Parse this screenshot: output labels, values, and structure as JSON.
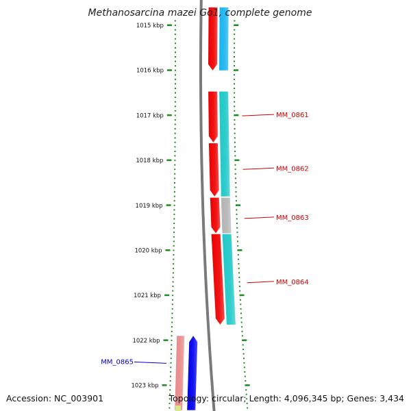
{
  "title": "Methanosarcina mazei Go1, complete genome",
  "footer": {
    "accession": "Accession: NC_003901",
    "summary": "Topology: circular; Length: 4,096,345 bp; Genes: 3,434"
  },
  "colors": {
    "tick": "#1f8a1f",
    "backbone": "#7a7a7a",
    "label_red": "#cc0000",
    "label_blue": "#0000cc"
  },
  "scale": {
    "unit": "kbp",
    "ticks": [
      {
        "kbp": 1015,
        "label": "1015 kbp"
      },
      {
        "kbp": 1016,
        "label": "1016 kbp"
      },
      {
        "kbp": 1017,
        "label": "1017 kbp"
      },
      {
        "kbp": 1018,
        "label": "1018 kbp"
      },
      {
        "kbp": 1019,
        "label": "1019 kbp"
      },
      {
        "kbp": 1020,
        "label": "1020 kbp"
      },
      {
        "kbp": 1021,
        "label": "1021 kbp"
      },
      {
        "kbp": 1022,
        "label": "1022 kbp"
      },
      {
        "kbp": 1023,
        "label": "1023 kbp"
      }
    ]
  },
  "features": [
    {
      "ring": "outer-red",
      "start": 1014.6,
      "end": 1016.0,
      "color": "#ee0000",
      "arrow": "down"
    },
    {
      "ring": "outer-cyan",
      "start": 1014.6,
      "end": 1016.0,
      "color": "#1ab4f0",
      "arrow": "none"
    },
    {
      "ring": "outer-red",
      "start": 1016.47,
      "end": 1017.6,
      "color": "#ee0000",
      "arrow": "down"
    },
    {
      "ring": "outer-red",
      "start": 1017.62,
      "end": 1018.8,
      "color": "#ee0000",
      "arrow": "down"
    },
    {
      "ring": "outer-red",
      "start": 1018.83,
      "end": 1019.62,
      "color": "#ee0000",
      "arrow": "down"
    },
    {
      "ring": "outer-red",
      "start": 1019.64,
      "end": 1021.65,
      "color": "#ee0000",
      "arrow": "down"
    },
    {
      "ring": "outer-cyan",
      "start": 1016.47,
      "end": 1018.8,
      "color": "#1fc8c8",
      "arrow": "none"
    },
    {
      "ring": "outer-cyan",
      "start": 1018.83,
      "end": 1019.62,
      "color": "#b4b4b4",
      "arrow": "none"
    },
    {
      "ring": "outer-cyan",
      "start": 1019.64,
      "end": 1021.65,
      "color": "#1fc8c8",
      "arrow": "none"
    },
    {
      "ring": "inner-pink",
      "start": 1021.9,
      "end": 1023.55,
      "color": "#e88a8a",
      "arrow": "none"
    },
    {
      "ring": "inner-blue",
      "start": 1021.9,
      "end": 1023.55,
      "color": "#0000ee",
      "arrow": "up"
    }
  ],
  "gene_labels": [
    {
      "name": "MM_0861",
      "kbp": 1016.98,
      "side": "right",
      "color": "#cc0000"
    },
    {
      "name": "MM_0862",
      "kbp": 1018.17,
      "side": "right",
      "color": "#cc0000"
    },
    {
      "name": "MM_0863",
      "kbp": 1019.26,
      "side": "right",
      "color": "#cc0000"
    },
    {
      "name": "MM_0864",
      "kbp": 1020.69,
      "side": "right",
      "color": "#cc0000"
    },
    {
      "name": "MM_0865",
      "kbp": 1022.48,
      "side": "left",
      "color": "#0000cc"
    }
  ]
}
